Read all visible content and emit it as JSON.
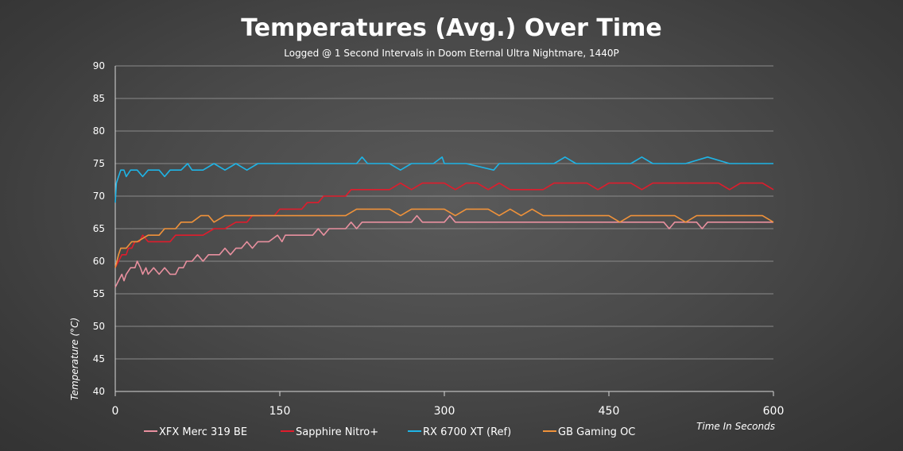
{
  "chart_data": {
    "type": "line",
    "title": "Temperatures (Avg.) Over Time",
    "subtitle": "Logged @ 1 Second Intervals in Doom Eternal Ultra Nightmare, 1440P",
    "xlabel": "Time In Seconds",
    "ylabel": "Temperature (°C)",
    "xlim": [
      0,
      600
    ],
    "ylim": [
      40,
      90
    ],
    "x_ticks": [
      0,
      150,
      300,
      450,
      600
    ],
    "y_ticks": [
      40,
      45,
      50,
      55,
      60,
      65,
      70,
      75,
      80,
      85,
      90
    ],
    "grid": "horizontal",
    "legend_position": "bottom",
    "series": [
      {
        "name": "XFX Merc 319 BE",
        "color": "#e8909f",
        "points": [
          [
            0,
            56
          ],
          [
            3,
            57
          ],
          [
            6,
            58
          ],
          [
            8,
            57
          ],
          [
            10,
            58
          ],
          [
            14,
            59
          ],
          [
            18,
            59
          ],
          [
            20,
            60
          ],
          [
            23,
            59
          ],
          [
            25,
            58
          ],
          [
            28,
            59
          ],
          [
            30,
            58
          ],
          [
            35,
            59
          ],
          [
            40,
            58
          ],
          [
            45,
            59
          ],
          [
            50,
            58
          ],
          [
            55,
            58
          ],
          [
            58,
            59
          ],
          [
            62,
            59
          ],
          [
            65,
            60
          ],
          [
            70,
            60
          ],
          [
            75,
            61
          ],
          [
            80,
            60
          ],
          [
            85,
            61
          ],
          [
            90,
            61
          ],
          [
            95,
            61
          ],
          [
            100,
            62
          ],
          [
            105,
            61
          ],
          [
            110,
            62
          ],
          [
            115,
            62
          ],
          [
            120,
            63
          ],
          [
            125,
            62
          ],
          [
            130,
            63
          ],
          [
            140,
            63
          ],
          [
            148,
            64
          ],
          [
            152,
            63
          ],
          [
            155,
            64
          ],
          [
            160,
            64
          ],
          [
            170,
            64
          ],
          [
            180,
            64
          ],
          [
            185,
            65
          ],
          [
            190,
            64
          ],
          [
            195,
            65
          ],
          [
            205,
            65
          ],
          [
            210,
            65
          ],
          [
            215,
            66
          ],
          [
            220,
            65
          ],
          [
            225,
            66
          ],
          [
            230,
            66
          ],
          [
            240,
            66
          ],
          [
            260,
            66
          ],
          [
            270,
            66
          ],
          [
            275,
            67
          ],
          [
            280,
            66
          ],
          [
            290,
            66
          ],
          [
            300,
            66
          ],
          [
            305,
            67
          ],
          [
            310,
            66
          ],
          [
            320,
            66
          ],
          [
            340,
            66
          ],
          [
            350,
            66
          ],
          [
            360,
            66
          ],
          [
            380,
            66
          ],
          [
            400,
            66
          ],
          [
            420,
            66
          ],
          [
            440,
            66
          ],
          [
            460,
            66
          ],
          [
            470,
            66
          ],
          [
            490,
            66
          ],
          [
            500,
            66
          ],
          [
            505,
            65
          ],
          [
            510,
            66
          ],
          [
            520,
            66
          ],
          [
            530,
            66
          ],
          [
            535,
            65
          ],
          [
            540,
            66
          ],
          [
            560,
            66
          ],
          [
            580,
            66
          ],
          [
            600,
            66
          ]
        ]
      },
      {
        "name": "Sapphire Nitro+",
        "color": "#e01c2c",
        "points": [
          [
            0,
            59
          ],
          [
            3,
            60
          ],
          [
            6,
            61
          ],
          [
            10,
            61
          ],
          [
            12,
            62
          ],
          [
            15,
            62
          ],
          [
            18,
            63
          ],
          [
            22,
            63
          ],
          [
            25,
            64
          ],
          [
            30,
            63
          ],
          [
            40,
            63
          ],
          [
            50,
            63
          ],
          [
            55,
            64
          ],
          [
            60,
            64
          ],
          [
            70,
            64
          ],
          [
            80,
            64
          ],
          [
            90,
            65
          ],
          [
            100,
            65
          ],
          [
            110,
            66
          ],
          [
            120,
            66
          ],
          [
            125,
            67
          ],
          [
            130,
            67
          ],
          [
            135,
            67
          ],
          [
            145,
            67
          ],
          [
            150,
            68
          ],
          [
            160,
            68
          ],
          [
            170,
            68
          ],
          [
            175,
            69
          ],
          [
            180,
            69
          ],
          [
            185,
            69
          ],
          [
            190,
            70
          ],
          [
            200,
            70
          ],
          [
            210,
            70
          ],
          [
            215,
            71
          ],
          [
            220,
            71
          ],
          [
            230,
            71
          ],
          [
            240,
            71
          ],
          [
            250,
            71
          ],
          [
            260,
            72
          ],
          [
            270,
            71
          ],
          [
            280,
            72
          ],
          [
            290,
            72
          ],
          [
            300,
            72
          ],
          [
            310,
            71
          ],
          [
            320,
            72
          ],
          [
            330,
            72
          ],
          [
            340,
            71
          ],
          [
            350,
            72
          ],
          [
            360,
            71
          ],
          [
            370,
            71
          ],
          [
            380,
            71
          ],
          [
            390,
            71
          ],
          [
            400,
            72
          ],
          [
            410,
            72
          ],
          [
            420,
            72
          ],
          [
            430,
            72
          ],
          [
            440,
            71
          ],
          [
            450,
            72
          ],
          [
            460,
            72
          ],
          [
            470,
            72
          ],
          [
            480,
            71
          ],
          [
            490,
            72
          ],
          [
            500,
            72
          ],
          [
            510,
            72
          ],
          [
            520,
            72
          ],
          [
            530,
            72
          ],
          [
            540,
            72
          ],
          [
            550,
            72
          ],
          [
            560,
            71
          ],
          [
            570,
            72
          ],
          [
            580,
            72
          ],
          [
            590,
            72
          ],
          [
            600,
            71
          ]
        ]
      },
      {
        "name": "RX 6700 XT (Ref)",
        "color": "#1eb4e6",
        "points": [
          [
            0,
            69
          ],
          [
            1,
            72
          ],
          [
            3,
            73
          ],
          [
            5,
            74
          ],
          [
            8,
            74
          ],
          [
            10,
            73
          ],
          [
            14,
            74
          ],
          [
            20,
            74
          ],
          [
            25,
            73
          ],
          [
            30,
            74
          ],
          [
            40,
            74
          ],
          [
            45,
            73
          ],
          [
            50,
            74
          ],
          [
            60,
            74
          ],
          [
            66,
            75
          ],
          [
            70,
            74
          ],
          [
            80,
            74
          ],
          [
            90,
            75
          ],
          [
            100,
            74
          ],
          [
            110,
            75
          ],
          [
            120,
            74
          ],
          [
            130,
            75
          ],
          [
            140,
            75
          ],
          [
            150,
            75
          ],
          [
            160,
            75
          ],
          [
            170,
            75
          ],
          [
            180,
            75
          ],
          [
            190,
            75
          ],
          [
            200,
            75
          ],
          [
            210,
            75
          ],
          [
            220,
            75
          ],
          [
            225,
            76
          ],
          [
            230,
            75
          ],
          [
            240,
            75
          ],
          [
            250,
            75
          ],
          [
            260,
            74
          ],
          [
            270,
            75
          ],
          [
            280,
            75
          ],
          [
            290,
            75
          ],
          [
            298,
            76
          ],
          [
            300,
            75
          ],
          [
            320,
            75
          ],
          [
            345,
            74
          ],
          [
            350,
            75
          ],
          [
            370,
            75
          ],
          [
            400,
            75
          ],
          [
            410,
            76
          ],
          [
            420,
            75
          ],
          [
            440,
            75
          ],
          [
            450,
            75
          ],
          [
            470,
            75
          ],
          [
            480,
            76
          ],
          [
            490,
            75
          ],
          [
            500,
            75
          ],
          [
            520,
            75
          ],
          [
            540,
            76
          ],
          [
            560,
            75
          ],
          [
            580,
            75
          ],
          [
            590,
            75
          ],
          [
            600,
            75
          ]
        ]
      },
      {
        "name": "GB Gaming OC",
        "color": "#f0923a",
        "points": [
          [
            0,
            59
          ],
          [
            3,
            61
          ],
          [
            5,
            62
          ],
          [
            10,
            62
          ],
          [
            15,
            63
          ],
          [
            20,
            63
          ],
          [
            30,
            64
          ],
          [
            40,
            64
          ],
          [
            45,
            65
          ],
          [
            55,
            65
          ],
          [
            60,
            66
          ],
          [
            70,
            66
          ],
          [
            78,
            67
          ],
          [
            85,
            67
          ],
          [
            90,
            66
          ],
          [
            100,
            67
          ],
          [
            110,
            67
          ],
          [
            120,
            67
          ],
          [
            130,
            67
          ],
          [
            140,
            67
          ],
          [
            150,
            67
          ],
          [
            160,
            67
          ],
          [
            170,
            67
          ],
          [
            180,
            67
          ],
          [
            190,
            67
          ],
          [
            200,
            67
          ],
          [
            210,
            67
          ],
          [
            220,
            68
          ],
          [
            230,
            68
          ],
          [
            240,
            68
          ],
          [
            250,
            68
          ],
          [
            260,
            67
          ],
          [
            270,
            68
          ],
          [
            280,
            68
          ],
          [
            290,
            68
          ],
          [
            300,
            68
          ],
          [
            310,
            67
          ],
          [
            320,
            68
          ],
          [
            330,
            68
          ],
          [
            340,
            68
          ],
          [
            350,
            67
          ],
          [
            360,
            68
          ],
          [
            370,
            67
          ],
          [
            380,
            68
          ],
          [
            390,
            67
          ],
          [
            400,
            67
          ],
          [
            420,
            67
          ],
          [
            440,
            67
          ],
          [
            450,
            67
          ],
          [
            460,
            66
          ],
          [
            470,
            67
          ],
          [
            480,
            67
          ],
          [
            490,
            67
          ],
          [
            500,
            67
          ],
          [
            510,
            67
          ],
          [
            520,
            66
          ],
          [
            530,
            67
          ],
          [
            540,
            67
          ],
          [
            550,
            67
          ],
          [
            560,
            67
          ],
          [
            570,
            67
          ],
          [
            580,
            67
          ],
          [
            590,
            67
          ],
          [
            600,
            66
          ]
        ]
      }
    ]
  }
}
